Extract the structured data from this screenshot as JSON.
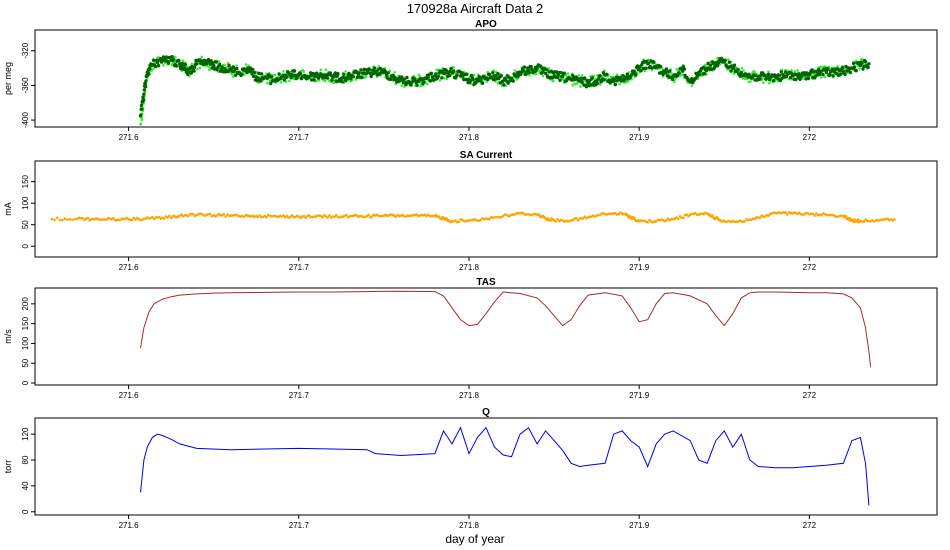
{
  "figure": {
    "title": "170928a   Aircraft Data 2",
    "xlabel": "day of year"
  },
  "chart_data": [
    {
      "type": "scatter",
      "title": "APO",
      "ylabel": "per meg",
      "xlim": [
        271.545,
        272.075
      ],
      "ylim": [
        -408,
        -296
      ],
      "xticks": [
        271.6,
        271.7,
        271.8,
        271.9,
        272.0
      ],
      "yticks": [
        -400,
        -360,
        -320
      ],
      "colors": {
        "raw": "#33ee33",
        "smooth": "#006400"
      },
      "series": [
        {
          "role": "raw-points",
          "color": "#33ee33",
          "spread": 7,
          "x": [
            271.607,
            271.609,
            271.611,
            271.614,
            271.62,
            271.625,
            271.63,
            271.633,
            271.636,
            271.64,
            271.645,
            271.65,
            271.655,
            271.66,
            271.665,
            271.67,
            271.675,
            271.68,
            271.685,
            271.69,
            271.695,
            271.7,
            271.705,
            271.71,
            271.715,
            271.72,
            271.725,
            271.73,
            271.735,
            271.74,
            271.745,
            271.75,
            271.755,
            271.76,
            271.765,
            271.77,
            271.775,
            271.78,
            271.785,
            271.79,
            271.795,
            271.8,
            271.805,
            271.81,
            271.815,
            271.82,
            271.825,
            271.83,
            271.835,
            271.84,
            271.845,
            271.85,
            271.855,
            271.86,
            271.865,
            271.87,
            271.875,
            271.88,
            271.885,
            271.89,
            271.895,
            271.9,
            271.905,
            271.91,
            271.915,
            271.92,
            271.925,
            271.93,
            271.935,
            271.94,
            271.945,
            271.95,
            271.955,
            271.96,
            271.965,
            271.97,
            271.975,
            271.98,
            271.985,
            271.99,
            271.995,
            272.0,
            272.005,
            272.01,
            272.015,
            272.02,
            272.025,
            272.03,
            272.035
          ],
          "y": [
            -405,
            -375,
            -345,
            -336,
            -330,
            -331,
            -335,
            -340,
            -345,
            -335,
            -333,
            -337,
            -339,
            -342,
            -345,
            -340,
            -350,
            -351,
            -354,
            -350,
            -348,
            -348,
            -350,
            -349,
            -348,
            -350,
            -352,
            -349,
            -347,
            -346,
            -344,
            -345,
            -350,
            -354,
            -356,
            -355,
            -352,
            -349,
            -346,
            -345,
            -349,
            -353,
            -355,
            -352,
            -349,
            -355,
            -352,
            -345,
            -342,
            -340,
            -346,
            -349,
            -350,
            -353,
            -355,
            -357,
            -355,
            -348,
            -355,
            -353,
            -350,
            -339,
            -335,
            -338,
            -345,
            -350,
            -340,
            -356,
            -345,
            -340,
            -335,
            -333,
            -340,
            -345,
            -350,
            -350,
            -351,
            -350,
            -349,
            -348,
            -350,
            -348,
            -345,
            -345,
            -345,
            -344,
            -340,
            -337,
            -335
          ]
        },
        {
          "role": "smoothed-points",
          "color": "#006400",
          "spread": 5,
          "x": [
            271.607,
            271.609,
            271.611,
            271.614,
            271.62,
            271.625,
            271.63,
            271.633,
            271.636,
            271.64,
            271.645,
            271.65,
            271.655,
            271.66,
            271.665,
            271.67,
            271.675,
            271.68,
            271.685,
            271.69,
            271.695,
            271.7,
            271.705,
            271.71,
            271.715,
            271.72,
            271.725,
            271.73,
            271.735,
            271.74,
            271.745,
            271.75,
            271.755,
            271.76,
            271.765,
            271.77,
            271.775,
            271.78,
            271.785,
            271.79,
            271.795,
            271.8,
            271.805,
            271.81,
            271.815,
            271.82,
            271.825,
            271.83,
            271.835,
            271.84,
            271.845,
            271.85,
            271.855,
            271.86,
            271.865,
            271.87,
            271.875,
            271.88,
            271.885,
            271.89,
            271.895,
            271.9,
            271.905,
            271.91,
            271.915,
            271.92,
            271.925,
            271.93,
            271.935,
            271.94,
            271.945,
            271.95,
            271.955,
            271.96,
            271.965,
            271.97,
            271.975,
            271.98,
            271.985,
            271.99,
            271.995,
            272.0,
            272.005,
            272.01,
            272.015,
            272.02,
            272.025,
            272.03,
            272.035
          ],
          "y": [
            -395,
            -370,
            -345,
            -336,
            -330,
            -331,
            -335,
            -340,
            -345,
            -335,
            -333,
            -337,
            -339,
            -342,
            -345,
            -340,
            -350,
            -351,
            -354,
            -350,
            -348,
            -348,
            -350,
            -349,
            -348,
            -350,
            -352,
            -349,
            -347,
            -346,
            -344,
            -345,
            -350,
            -354,
            -356,
            -355,
            -352,
            -349,
            -346,
            -345,
            -349,
            -353,
            -355,
            -352,
            -349,
            -355,
            -352,
            -345,
            -342,
            -340,
            -346,
            -349,
            -350,
            -353,
            -355,
            -357,
            -355,
            -348,
            -355,
            -353,
            -350,
            -339,
            -335,
            -338,
            -345,
            -350,
            -340,
            -356,
            -345,
            -340,
            -335,
            -333,
            -340,
            -345,
            -350,
            -350,
            -351,
            -350,
            -349,
            -348,
            -350,
            -348,
            -345,
            -345,
            -345,
            -344,
            -340,
            -337,
            -335
          ]
        }
      ]
    },
    {
      "type": "scatter",
      "title": "SA Current",
      "ylabel": "mA",
      "xlim": [
        271.545,
        272.075
      ],
      "ylim": [
        -25,
        198
      ],
      "xticks": [
        271.6,
        271.7,
        271.8,
        271.9,
        272.0
      ],
      "yticks": [
        0,
        50,
        100,
        150
      ],
      "colors": {
        "points": "#ffa500"
      },
      "series": [
        {
          "role": "points",
          "color": "#ffa500",
          "spread": 3,
          "x": [
            271.555,
            271.57,
            271.58,
            271.59,
            271.6,
            271.61,
            271.62,
            271.63,
            271.64,
            271.65,
            271.66,
            271.67,
            271.68,
            271.69,
            271.7,
            271.71,
            271.72,
            271.73,
            271.74,
            271.75,
            271.76,
            271.77,
            271.78,
            271.785,
            271.79,
            271.8,
            271.81,
            271.82,
            271.83,
            271.84,
            271.845,
            271.85,
            271.86,
            271.87,
            271.88,
            271.89,
            271.895,
            271.9,
            271.91,
            271.92,
            271.93,
            271.94,
            271.945,
            271.95,
            271.96,
            271.97,
            271.98,
            271.99,
            272.0,
            272.01,
            272.02,
            272.025,
            272.03,
            272.04,
            272.05
          ],
          "y": [
            63,
            64,
            63,
            63,
            63,
            64,
            66,
            71,
            73,
            72,
            71,
            71,
            70,
            69,
            69,
            69,
            69,
            70,
            70,
            71,
            71,
            71,
            70,
            65,
            58,
            60,
            64,
            70,
            76,
            74,
            65,
            60,
            60,
            67,
            75,
            76,
            68,
            58,
            58,
            63,
            73,
            76,
            65,
            58,
            58,
            66,
            77,
            76,
            74,
            73,
            70,
            60,
            59,
            61,
            62
          ]
        }
      ]
    },
    {
      "type": "line",
      "title": "TAS",
      "ylabel": "m/s",
      "xlim": [
        271.545,
        272.075
      ],
      "ylim": [
        -5,
        240
      ],
      "xticks": [
        271.6,
        271.7,
        271.8,
        271.9,
        272.0
      ],
      "yticks": [
        0,
        50,
        100,
        150,
        200
      ],
      "colors": {
        "line": "#a52a2a"
      },
      "series": [
        {
          "role": "line",
          "color": "#a52a2a",
          "x": [
            271.607,
            271.609,
            271.612,
            271.615,
            271.62,
            271.625,
            271.63,
            271.64,
            271.65,
            271.66,
            271.68,
            271.7,
            271.72,
            271.74,
            271.76,
            271.78,
            271.785,
            271.79,
            271.795,
            271.8,
            271.805,
            271.81,
            271.815,
            271.82,
            271.83,
            271.84,
            271.845,
            271.85,
            271.855,
            271.86,
            271.865,
            271.87,
            271.88,
            271.89,
            271.895,
            271.9,
            271.905,
            271.91,
            271.915,
            271.92,
            271.93,
            271.94,
            271.945,
            271.95,
            271.955,
            271.96,
            271.965,
            271.97,
            271.98,
            271.99,
            272.0,
            272.01,
            272.02,
            272.025,
            272.03,
            272.033,
            272.035,
            272.036
          ],
          "y": [
            88,
            140,
            180,
            200,
            212,
            218,
            222,
            225,
            227,
            228,
            229,
            230,
            230,
            231,
            232,
            231,
            220,
            190,
            160,
            145,
            148,
            175,
            205,
            230,
            226,
            215,
            195,
            170,
            145,
            160,
            195,
            222,
            228,
            220,
            190,
            155,
            160,
            200,
            226,
            228,
            220,
            200,
            170,
            145,
            175,
            215,
            228,
            230,
            230,
            229,
            228,
            228,
            225,
            215,
            190,
            140,
            80,
            40
          ]
        }
      ]
    },
    {
      "type": "line",
      "title": "Q",
      "ylabel": "torr",
      "xlim": [
        271.545,
        272.075
      ],
      "ylim": [
        -5,
        145
      ],
      "xticks": [
        271.6,
        271.7,
        271.8,
        271.9,
        272.0
      ],
      "yticks": [
        0,
        40,
        80,
        120
      ],
      "colors": {
        "line": "#0000ee"
      },
      "series": [
        {
          "role": "line",
          "color": "#0000ee",
          "x": [
            271.607,
            271.609,
            271.611,
            271.614,
            271.617,
            271.62,
            271.625,
            271.63,
            271.64,
            271.66,
            271.68,
            271.7,
            271.72,
            271.74,
            271.745,
            271.76,
            271.78,
            271.785,
            271.79,
            271.795,
            271.8,
            271.805,
            271.81,
            271.815,
            271.82,
            271.825,
            271.83,
            271.835,
            271.84,
            271.845,
            271.85,
            271.855,
            271.86,
            271.865,
            271.87,
            271.88,
            271.885,
            271.89,
            271.895,
            271.9,
            271.905,
            271.91,
            271.915,
            271.92,
            271.93,
            271.935,
            271.94,
            271.945,
            271.95,
            271.955,
            271.96,
            271.965,
            271.97,
            271.98,
            271.99,
            272.0,
            272.01,
            272.02,
            272.025,
            272.03,
            272.033,
            272.035
          ],
          "y": [
            30,
            80,
            100,
            115,
            120,
            118,
            112,
            105,
            98,
            96,
            97,
            98,
            97,
            96,
            90,
            87,
            90,
            125,
            105,
            130,
            90,
            115,
            130,
            100,
            88,
            85,
            120,
            130,
            105,
            125,
            110,
            95,
            75,
            70,
            72,
            75,
            120,
            125,
            110,
            100,
            70,
            105,
            120,
            125,
            110,
            80,
            75,
            110,
            125,
            100,
            120,
            80,
            70,
            68,
            68,
            70,
            72,
            75,
            110,
            115,
            75,
            10
          ]
        }
      ]
    }
  ]
}
